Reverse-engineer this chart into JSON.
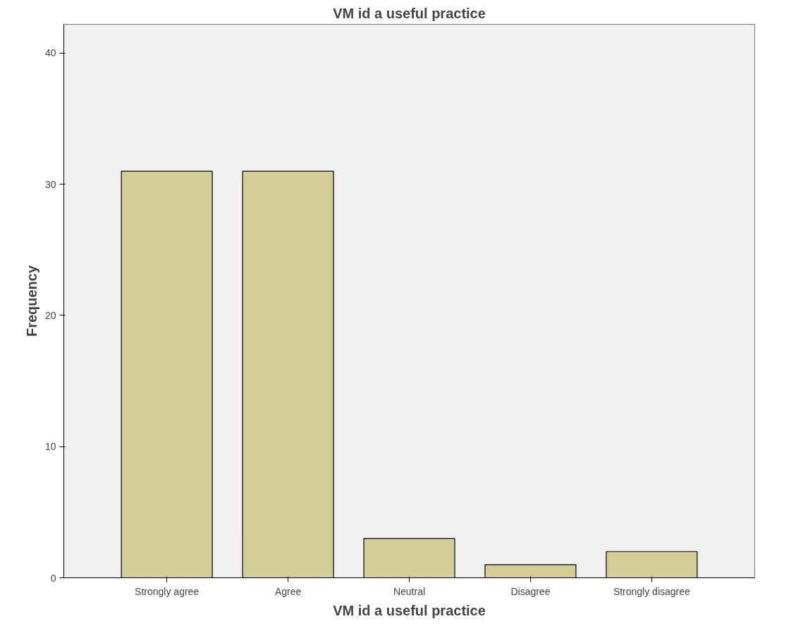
{
  "chart_data": {
    "type": "bar",
    "title": "VM id a useful practice",
    "xlabel": "VM id a useful practice",
    "ylabel": "Frequency",
    "categories": [
      "Strongly agree",
      "Agree",
      "Neutral",
      "Disagree",
      "Strongly disagree"
    ],
    "values": [
      31,
      31,
      3,
      1,
      2
    ],
    "color": "#d3ce97",
    "ylim": [
      0,
      42.2
    ],
    "yticks": [
      0,
      10,
      20,
      30,
      40
    ],
    "grid": false
  }
}
